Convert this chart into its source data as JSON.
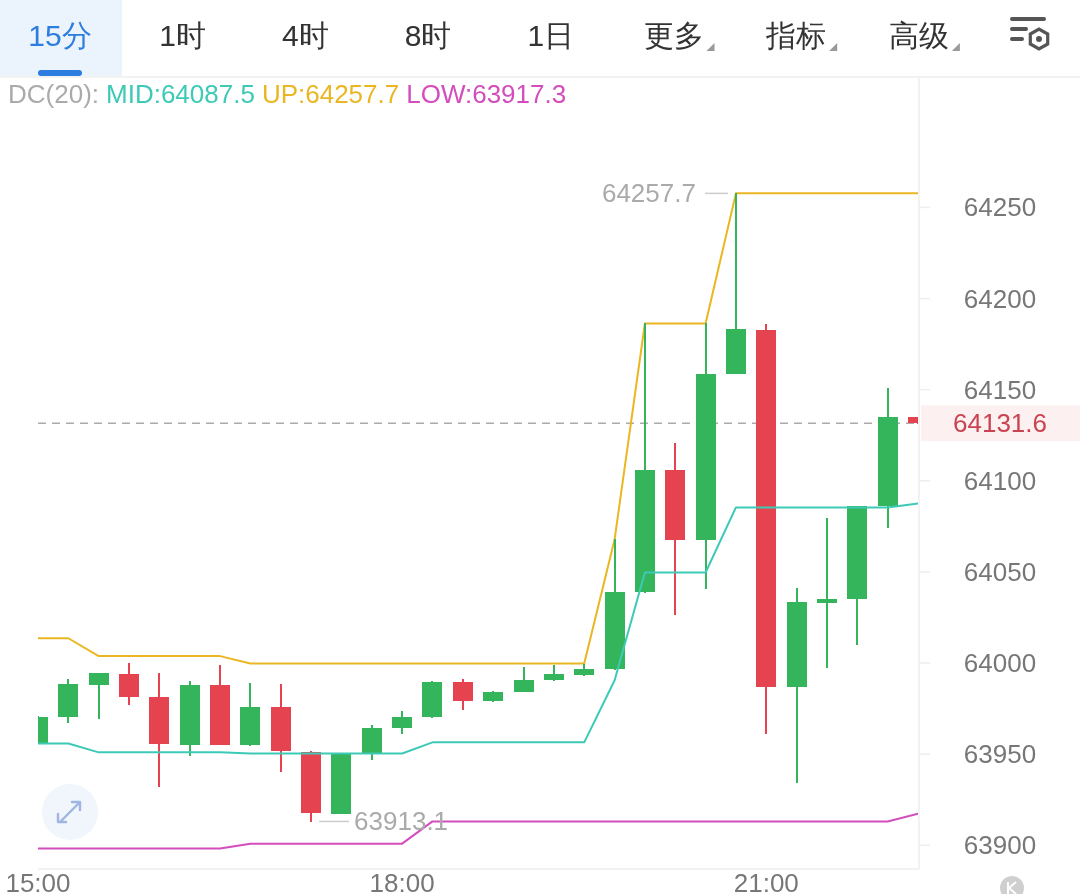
{
  "chart_data": {
    "type": "candlestick",
    "x": [
      15,
      15.25,
      15.5,
      15.75,
      16,
      16.25,
      16.5,
      16.75,
      17,
      17.25,
      17.5,
      17.75,
      18,
      18.25,
      18.5,
      18.75,
      19,
      19.25,
      19.5,
      19.75,
      20,
      20.25,
      20.5,
      20.75,
      21,
      21.25,
      21.5,
      21.75,
      22,
      22.25
    ],
    "ohlc": [
      [
        63955.9,
        63970.5,
        63955.9,
        63970.5
      ],
      [
        63970.5,
        63991.0,
        63967.2,
        63988.3
      ],
      [
        63987.7,
        63994.3,
        63969.6,
        63994.3
      ],
      [
        63994.0,
        63999.5,
        63977.5,
        63981.5
      ],
      [
        63981.2,
        63994.3,
        63932.0,
        63955.5
      ],
      [
        63954.9,
        63989.7,
        63949.1,
        63988.1
      ],
      [
        63987.7,
        63998.4,
        63955.3,
        63955.3
      ],
      [
        63954.9,
        63988.8,
        63954.9,
        63976.0
      ],
      [
        63975.8,
        63988.3,
        63940.3,
        63951.8
      ],
      [
        63951.3,
        63951.3,
        63913.1,
        63917.7
      ],
      [
        63917.3,
        63950.4,
        63917.3,
        63950.4
      ],
      [
        63950.4,
        63965.9,
        63947.1,
        63964.5
      ],
      [
        63964.1,
        63973.2,
        63961.4,
        63970.5
      ],
      [
        63970.2,
        63989.7,
        63970.2,
        63989.7
      ],
      [
        63989.4,
        63990.7,
        63974.7,
        63979.3
      ],
      [
        63979.1,
        63984.2,
        63979.1,
        63984.2
      ],
      [
        63984.2,
        63997.6,
        63984.2,
        63990.7
      ],
      [
        63990.5,
        63998.9,
        63990.5,
        63993.8
      ],
      [
        63993.4,
        63999.3,
        63993.4,
        63996.7
      ],
      [
        63996.5,
        64067.6,
        63996.5,
        64038.8
      ],
      [
        64038.8,
        64186.3,
        64038.8,
        64106.0
      ],
      [
        64106.0,
        64120.7,
        64026.4,
        64067.6
      ],
      [
        64067.6,
        64186.3,
        64041.0,
        64158.8
      ],
      [
        64158.8,
        64257.7,
        64158.8,
        64183.4
      ],
      [
        64183.0,
        64185.7,
        63961.4,
        63987.0
      ],
      [
        63987.0,
        64041.0,
        63934.2,
        64033.4
      ],
      [
        64032.8,
        64079.5,
        63997.4,
        64035.0
      ],
      [
        64035.0,
        64085.9,
        64010.4,
        64085.9
      ],
      [
        64085.9,
        64150.4,
        64074.3,
        64135.0
      ],
      [
        64135.0,
        64135.0,
        64131.6,
        64131.6
      ]
    ],
    "colors": [
      "#35b55b",
      "#35b55b",
      "#35b55b",
      "#e5434f",
      "#e5434f",
      "#35b55b",
      "#e5434f",
      "#35b55b",
      "#e5434f",
      "#e5434f",
      "#35b55b",
      "#35b55b",
      "#35b55b",
      "#35b55b",
      "#e5434f",
      "#35b55b",
      "#35b55b",
      "#35b55b",
      "#35b55b",
      "#35b55b",
      "#35b55b",
      "#e5434f",
      "#35b55b",
      "#35b55b",
      "#e5434f",
      "#35b55b",
      "#35b55b",
      "#35b55b",
      "#35b55b",
      "#e5434f"
    ],
    "legend_title": "DC(20):",
    "series": [
      {
        "name": "MID:64087.5",
        "type": "line",
        "color": "#3ccab6",
        "values": [
          63955.9,
          63955.9,
          63951.0,
          63951.0,
          63951.0,
          63951.0,
          63951.0,
          63950.4,
          63950.4,
          63950.4,
          63950.4,
          63950.4,
          63950.4,
          63956.5,
          63956.5,
          63956.5,
          63956.5,
          63956.5,
          63956.5,
          63990.4,
          64049.7,
          64049.7,
          64049.7,
          64085.4,
          64085.4,
          64085.4,
          64085.4,
          64085.4,
          64085.4,
          64087.5
        ]
      },
      {
        "name": "UP:64257.7",
        "type": "line",
        "color": "#eab622",
        "values": [
          64013.6,
          64013.6,
          64003.8,
          64003.8,
          64003.8,
          64003.8,
          64003.8,
          63999.8,
          63999.8,
          63999.8,
          63999.8,
          63999.8,
          63999.8,
          63999.8,
          63999.8,
          63999.8,
          63999.8,
          63999.8,
          63999.8,
          64067.6,
          64186.3,
          64186.3,
          64186.3,
          64257.7,
          64257.7,
          64257.7,
          64257.7,
          64257.7,
          64257.7,
          64257.7
        ]
      },
      {
        "name": "LOW:63917.3",
        "type": "line",
        "color": "#d34dbd",
        "values": [
          63898.2,
          63898.2,
          63898.2,
          63898.2,
          63898.2,
          63898.2,
          63898.2,
          63900.9,
          63900.9,
          63900.9,
          63900.9,
          63900.9,
          63900.9,
          63913.1,
          63913.1,
          63913.1,
          63913.1,
          63913.1,
          63913.1,
          63913.1,
          63913.1,
          63913.1,
          63913.1,
          63913.1,
          63913.1,
          63913.1,
          63913.1,
          63913.1,
          63913.1,
          63917.3
        ]
      }
    ],
    "xlim": [
      15,
      22.25
    ],
    "xticks": [
      {
        "value": 15,
        "label": "15:00"
      },
      {
        "value": 18,
        "label": "18:00"
      },
      {
        "value": 21,
        "label": "21:00"
      }
    ],
    "ylim": [
      63887,
      64321
    ],
    "yticks": [
      63900,
      63950,
      64000,
      64050,
      64100,
      64150,
      64200,
      64250
    ],
    "legend": "top left",
    "ref_lines": [
      {
        "axis": "y",
        "value": 64131.6,
        "color": "#aaaaaa",
        "line_style": "dashed"
      }
    ],
    "annotations": [
      "15分",
      "1时",
      "4时",
      "8时",
      "1日",
      "更多",
      "指标",
      "高级",
      {
        "text": "64257.7",
        "x": 20.75,
        "y": 64257.7
      },
      {
        "text": "63913.1",
        "x": 17.25,
        "y": 63913.1
      },
      {
        "text": "64131.6",
        "x": 22.25,
        "y": 64131.6
      }
    ]
  }
}
